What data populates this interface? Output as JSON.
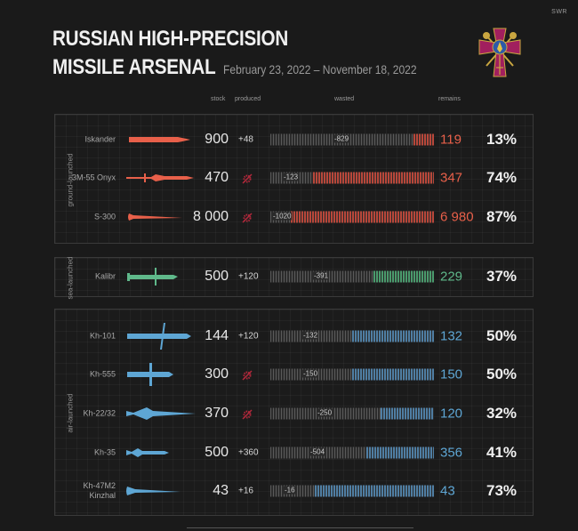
{
  "header": {
    "credit": "SWR",
    "title_line1": "RUSSIAN HIGH-PRECISION",
    "title_line2": "MISSILE ARSENAL",
    "date_range": "February 23, 2022 – November 18, 2022",
    "emblem": "ukraine-armed-forces-cross-emblem"
  },
  "columns": {
    "stock": "stock",
    "produced": "produced",
    "wasted": "wasted",
    "remains": "remains"
  },
  "groups": [
    {
      "label": "ground-launched",
      "color": "#e8604a",
      "bar_color": "#b8473a",
      "rows": [
        {
          "name": "Iskander",
          "stock": "900",
          "produced": "+48",
          "wasted": "-829",
          "remains": "119",
          "pct": "13%"
        },
        {
          "name": "3M-55 Onyx",
          "stock": "470",
          "produced": null,
          "wasted": "-123",
          "remains": "347",
          "pct": "74%"
        },
        {
          "name": "S-300",
          "stock": "8 000",
          "produced": null,
          "wasted": "-1020",
          "remains": "6 980",
          "pct": "87%"
        }
      ]
    },
    {
      "label": "sea-launched",
      "color": "#5fb88a",
      "bar_color": "#4a9a6c",
      "rows": [
        {
          "name": "Kalibr",
          "stock": "500",
          "produced": "+120",
          "wasted": "-391",
          "remains": "229",
          "pct": "37%"
        }
      ]
    },
    {
      "label": "air-launched",
      "color": "#5ea6d4",
      "bar_color": "#4f7ea3",
      "rows": [
        {
          "name": "Kh-101",
          "stock": "144",
          "produced": "+120",
          "wasted": "-132",
          "remains": "132",
          "pct": "50%"
        },
        {
          "name": "Kh-555",
          "stock": "300",
          "produced": null,
          "wasted": "-150",
          "remains": "150",
          "pct": "50%"
        },
        {
          "name": "Kh-22/32",
          "stock": "370",
          "produced": null,
          "wasted": "-250",
          "remains": "120",
          "pct": "32%"
        },
        {
          "name": "Kh-35",
          "stock": "500",
          "produced": "+360",
          "wasted": "-504",
          "remains": "356",
          "pct": "41%"
        },
        {
          "name": "Kh-47M2 Kinzhal",
          "stock": "43",
          "produced": "+16",
          "wasted": "-16",
          "remains": "43",
          "pct": "73%"
        }
      ]
    }
  ],
  "icons": {
    "not_produced": "crossed-gear-icon"
  },
  "chart_data": {
    "type": "bar",
    "title": "Russian High-Precision Missile Arsenal",
    "subtitle": "February 23, 2022 – November 18, 2022",
    "categories": [
      "Iskander",
      "3M-55 Onyx",
      "S-300",
      "Kalibr",
      "Kh-101",
      "Kh-555",
      "Kh-22/32",
      "Kh-35",
      "Kh-47M2 Kinzhal"
    ],
    "groups": [
      "ground-launched",
      "ground-launched",
      "ground-launched",
      "sea-launched",
      "air-launched",
      "air-launched",
      "air-launched",
      "air-launched",
      "air-launched"
    ],
    "series": [
      {
        "name": "stock",
        "values": [
          900,
          470,
          8000,
          500,
          144,
          300,
          370,
          500,
          43
        ]
      },
      {
        "name": "produced",
        "values": [
          48,
          null,
          null,
          120,
          120,
          null,
          null,
          360,
          16
        ]
      },
      {
        "name": "wasted",
        "values": [
          -829,
          -123,
          -1020,
          -391,
          -132,
          -150,
          -250,
          -504,
          -16
        ]
      },
      {
        "name": "remains",
        "values": [
          119,
          347,
          6980,
          229,
          132,
          150,
          120,
          356,
          43
        ]
      },
      {
        "name": "remains_pct",
        "values": [
          13,
          74,
          87,
          37,
          50,
          50,
          32,
          41,
          73
        ]
      }
    ],
    "legend": [
      "stock",
      "produced",
      "wasted",
      "remains"
    ],
    "colors": {
      "ground": "#e8604a",
      "sea": "#5fb88a",
      "air": "#5ea6d4"
    }
  }
}
